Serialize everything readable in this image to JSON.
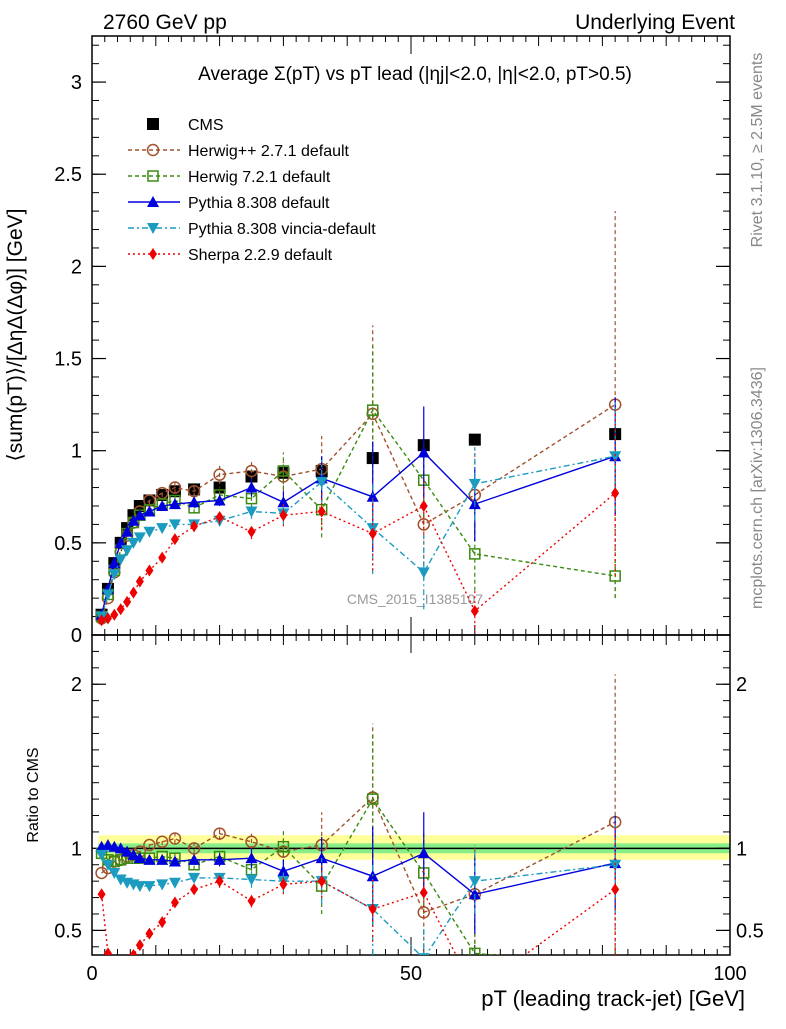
{
  "header": {
    "left": "2760 GeV pp",
    "right": "Underlying Event"
  },
  "side_labels": {
    "top": "Rivet 3.1.10, ≥ 2.5M events",
    "bottom": "mcplots.cern.ch [arXiv:1306.3436]"
  },
  "watermark": "CMS_2015_I1385107",
  "chart_data": [
    {
      "type": "line",
      "panel": "main",
      "title": "Average Σ(pT) vs pT lead (|ηj|<2.0, |η|<2.0, pT>0.5)",
      "ylabel": "⟨sum(pT)⟩/[ΔηΔ(Δφ)] [GeV]",
      "xlim": [
        0,
        100
      ],
      "ylim": [
        0,
        3.25
      ],
      "yticks": [
        0,
        0.5,
        1,
        1.5,
        2,
        2.5,
        3
      ],
      "yticklabels": [
        "0",
        "0.5",
        "1",
        "1.5",
        "2",
        "2.5",
        "3"
      ],
      "legend_position": "top-left",
      "series": [
        {
          "name": "CMS",
          "color": "#000000",
          "marker": "square-filled",
          "x": [
            1.5,
            2.5,
            3.5,
            4.5,
            5.5,
            6.5,
            7.5,
            9,
            11,
            13,
            16,
            20,
            25,
            30,
            36,
            44,
            52,
            60,
            82
          ],
          "y": [
            0.11,
            0.25,
            0.39,
            0.5,
            0.58,
            0.65,
            0.7,
            0.73,
            0.76,
            0.78,
            0.79,
            0.8,
            0.86,
            0.88,
            0.89,
            0.96,
            1.03,
            1.06,
            1.09
          ]
        },
        {
          "name": "Herwig++ 2.7.1 default",
          "color": "#a0522d",
          "marker": "circle-open",
          "dash": "4,3",
          "x": [
            1.5,
            2.5,
            3.5,
            4.5,
            5.5,
            6.5,
            7.5,
            9,
            11,
            13,
            16,
            20,
            25,
            30,
            36,
            44,
            52,
            60,
            82
          ],
          "y": [
            0.09,
            0.2,
            0.34,
            0.45,
            0.54,
            0.61,
            0.67,
            0.73,
            0.77,
            0.8,
            0.78,
            0.87,
            0.89,
            0.86,
            0.9,
            1.2,
            0.6,
            0.76,
            1.25
          ],
          "err": [
            0.01,
            0.01,
            0.01,
            0.01,
            0.01,
            0.01,
            0.02,
            0.02,
            0.02,
            0.03,
            0.03,
            0.05,
            0.05,
            0.08,
            0.18,
            0.48,
            0.3,
            0.25,
            1.05
          ]
        },
        {
          "name": "Herwig 7.2.1 default",
          "color": "#3a8a10",
          "marker": "square-open",
          "dash": "4,3",
          "x": [
            1.5,
            2.5,
            3.5,
            4.5,
            5.5,
            6.5,
            7.5,
            9,
            11,
            13,
            16,
            20,
            25,
            30,
            36,
            44,
            52,
            60,
            82
          ],
          "y": [
            0.1,
            0.22,
            0.35,
            0.46,
            0.55,
            0.61,
            0.65,
            0.68,
            0.71,
            0.73,
            0.69,
            0.76,
            0.74,
            0.89,
            0.68,
            1.22,
            0.84,
            0.44,
            0.32
          ],
          "err": [
            0.01,
            0.01,
            0.01,
            0.01,
            0.01,
            0.02,
            0.02,
            0.02,
            0.02,
            0.03,
            0.03,
            0.04,
            0.05,
            0.1,
            0.15,
            0.35,
            0.2,
            0.2,
            0.12
          ]
        },
        {
          "name": "Pythia 8.308 default",
          "color": "#0000dd",
          "marker": "triangle-up",
          "dash": "",
          "x": [
            1.5,
            2.5,
            3.5,
            4.5,
            5.5,
            6.5,
            7.5,
            9,
            11,
            13,
            16,
            20,
            25,
            30,
            36,
            44,
            52,
            60,
            82
          ],
          "y": [
            0.11,
            0.25,
            0.39,
            0.5,
            0.56,
            0.62,
            0.65,
            0.67,
            0.7,
            0.71,
            0.72,
            0.73,
            0.8,
            0.72,
            0.85,
            0.75,
            0.99,
            0.71,
            0.97
          ],
          "err": [
            0.01,
            0.01,
            0.01,
            0.01,
            0.01,
            0.01,
            0.01,
            0.02,
            0.02,
            0.02,
            0.02,
            0.03,
            0.05,
            0.06,
            0.12,
            0.3,
            0.25,
            0.2,
            0.32
          ]
        },
        {
          "name": "Pythia 8.308 vincia-default",
          "color": "#1a9bbf",
          "marker": "triangle-down",
          "dash": "6,3,2,3",
          "x": [
            1.5,
            2.5,
            3.5,
            4.5,
            5.5,
            6.5,
            7.5,
            9,
            11,
            13,
            16,
            20,
            25,
            30,
            36,
            44,
            52,
            60,
            82
          ],
          "y": [
            0.1,
            0.22,
            0.33,
            0.41,
            0.46,
            0.5,
            0.53,
            0.56,
            0.58,
            0.6,
            0.6,
            0.62,
            0.67,
            0.66,
            0.83,
            0.58,
            0.34,
            0.82,
            0.97
          ],
          "err": [
            0.01,
            0.01,
            0.01,
            0.01,
            0.01,
            0.01,
            0.02,
            0.02,
            0.02,
            0.02,
            0.02,
            0.03,
            0.04,
            0.06,
            0.12,
            0.25,
            0.2,
            0.2,
            0.3
          ]
        },
        {
          "name": "Sherpa 2.2.9 default",
          "color": "#ee0000",
          "marker": "diamond-filled",
          "dash": "2,3",
          "x": [
            1.5,
            2.5,
            3.5,
            4.5,
            5.5,
            6.5,
            7.5,
            9,
            11,
            13,
            16,
            20,
            25,
            30,
            36,
            44,
            52,
            60,
            82
          ],
          "y": [
            0.08,
            0.09,
            0.11,
            0.14,
            0.18,
            0.23,
            0.29,
            0.35,
            0.42,
            0.52,
            0.59,
            0.64,
            0.56,
            0.65,
            0.67,
            0.55,
            0.7,
            0.13,
            0.77
          ],
          "err": [
            0.01,
            0.01,
            0.01,
            0.01,
            0.01,
            0.01,
            0.02,
            0.02,
            0.02,
            0.02,
            0.03,
            0.04,
            0.04,
            0.06,
            0.1,
            0.2,
            0.15,
            0.12,
            0.45
          ]
        }
      ]
    },
    {
      "type": "line",
      "panel": "ratio",
      "ylabel": "Ratio to CMS",
      "xlabel": "pT (leading track-jet) [GeV]",
      "xlim": [
        0,
        100
      ],
      "ylim": [
        0.35,
        2.3
      ],
      "xticks": [
        0,
        50,
        100
      ],
      "xticklabels": [
        "0",
        "50",
        "100"
      ],
      "yticks": [
        0.5,
        1,
        2
      ],
      "yticklabels": [
        "0.5",
        "1",
        "2"
      ],
      "reference": 1,
      "bands": [
        {
          "x": [
            1,
            2,
            4,
            8,
            16,
            30,
            50,
            70,
            100
          ],
          "lo": [
            0.93,
            0.93,
            0.93,
            0.93,
            0.93,
            0.93,
            0.93,
            0.93,
            0.93
          ],
          "hi": [
            1.08,
            1.08,
            1.08,
            1.08,
            1.08,
            1.08,
            1.08,
            1.08,
            1.08
          ],
          "color": "#ffff99"
        },
        {
          "x": [
            1,
            2,
            4,
            8,
            16,
            30,
            50,
            70,
            100
          ],
          "lo": [
            0.97,
            0.97,
            0.97,
            0.97,
            0.97,
            0.97,
            0.97,
            0.97,
            0.97
          ],
          "hi": [
            1.03,
            1.03,
            1.03,
            1.03,
            1.03,
            1.03,
            1.03,
            1.03,
            1.03
          ],
          "color": "#88ee88"
        }
      ],
      "series": [
        {
          "name": "Herwig++ 2.7.1 default",
          "color": "#a0522d",
          "marker": "circle-open",
          "dash": "4,3",
          "x": [
            1.5,
            2.5,
            3.5,
            4.5,
            5.5,
            6.5,
            7.5,
            9,
            11,
            13,
            16,
            20,
            25,
            30,
            36,
            44,
            52,
            60,
            82
          ],
          "y": [
            0.85,
            0.88,
            0.92,
            0.93,
            0.95,
            0.96,
            0.98,
            1.02,
            1.04,
            1.06,
            1.0,
            1.09,
            1.04,
            0.98,
            1.02,
            1.31,
            0.61,
            0.72,
            1.16
          ],
          "err": [
            0.01,
            0.01,
            0.01,
            0.01,
            0.01,
            0.02,
            0.02,
            0.02,
            0.02,
            0.03,
            0.03,
            0.04,
            0.05,
            0.08,
            0.2,
            0.45,
            0.3,
            0.3,
            0.9
          ]
        },
        {
          "name": "Herwig 7.2.1 default",
          "color": "#3a8a10",
          "marker": "square-open",
          "dash": "4,3",
          "x": [
            1.5,
            2.5,
            3.5,
            4.5,
            5.5,
            6.5,
            7.5,
            9,
            11,
            13,
            16,
            20,
            25,
            30,
            36,
            44,
            52,
            60,
            82
          ],
          "y": [
            0.97,
            0.93,
            0.92,
            0.93,
            0.94,
            0.94,
            0.94,
            0.94,
            0.95,
            0.94,
            0.9,
            0.95,
            0.87,
            1.01,
            0.77,
            1.3,
            0.85,
            0.36,
            0.29
          ],
          "err": [
            0.01,
            0.01,
            0.01,
            0.01,
            0.01,
            0.02,
            0.02,
            0.02,
            0.02,
            0.03,
            0.03,
            0.04,
            0.05,
            0.1,
            0.17,
            0.4,
            0.25,
            0.2,
            0.1
          ]
        },
        {
          "name": "Pythia 8.308 default",
          "color": "#0000dd",
          "marker": "triangle-up",
          "dash": "",
          "x": [
            1.5,
            2.5,
            3.5,
            4.5,
            5.5,
            6.5,
            7.5,
            9,
            11,
            13,
            16,
            20,
            25,
            30,
            36,
            44,
            52,
            60,
            82
          ],
          "y": [
            1.01,
            1.02,
            1.01,
            1.0,
            0.98,
            0.96,
            0.94,
            0.93,
            0.93,
            0.92,
            0.93,
            0.93,
            0.94,
            0.86,
            0.94,
            0.83,
            0.97,
            0.72,
            0.91
          ],
          "err": [
            0.01,
            0.01,
            0.01,
            0.01,
            0.01,
            0.01,
            0.02,
            0.02,
            0.02,
            0.02,
            0.03,
            0.04,
            0.06,
            0.07,
            0.13,
            0.3,
            0.25,
            0.24,
            0.29
          ]
        },
        {
          "name": "Pythia 8.308 vincia-default",
          "color": "#1a9bbf",
          "marker": "triangle-down",
          "dash": "6,3,2,3",
          "x": [
            1.5,
            2.5,
            3.5,
            4.5,
            5.5,
            6.5,
            7.5,
            9,
            11,
            13,
            16,
            20,
            25,
            30,
            36,
            44,
            52,
            60,
            82
          ],
          "y": [
            0.96,
            0.9,
            0.85,
            0.81,
            0.79,
            0.78,
            0.77,
            0.77,
            0.78,
            0.79,
            0.82,
            0.82,
            0.81,
            0.8,
            0.8,
            0.63,
            0.33,
            0.8,
            0.9
          ],
          "err": [
            0.01,
            0.01,
            0.01,
            0.01,
            0.01,
            0.01,
            0.02,
            0.02,
            0.02,
            0.02,
            0.02,
            0.03,
            0.05,
            0.07,
            0.14,
            0.28,
            0.2,
            0.2,
            0.3
          ]
        },
        {
          "name": "Sherpa 2.2.9 default",
          "color": "#ee0000",
          "marker": "diamond-filled",
          "dash": "2,3",
          "x": [
            1.5,
            2.5,
            3.5,
            4.5,
            5.5,
            6.5,
            7.5,
            9,
            11,
            13,
            16,
            20,
            25,
            30,
            36,
            44,
            52,
            60,
            82
          ],
          "y": [
            0.72,
            0.36,
            0.28,
            0.28,
            0.31,
            0.35,
            0.41,
            0.48,
            0.55,
            0.67,
            0.75,
            0.8,
            0.68,
            0.78,
            0.8,
            0.63,
            0.73,
            0.13,
            0.75
          ],
          "err": [
            0.01,
            0.01,
            0.01,
            0.01,
            0.01,
            0.01,
            0.02,
            0.02,
            0.02,
            0.02,
            0.03,
            0.04,
            0.04,
            0.06,
            0.1,
            0.2,
            0.15,
            0.12,
            0.4
          ]
        }
      ]
    }
  ]
}
